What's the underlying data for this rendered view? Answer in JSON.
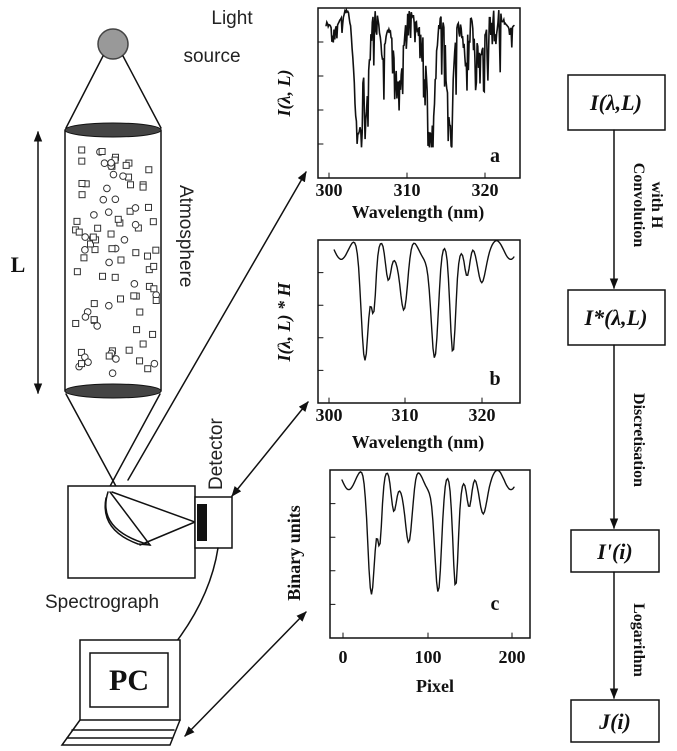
{
  "schematic": {
    "light_source": [
      "Light",
      "source"
    ],
    "atmosphere": "Atmosphere",
    "length": "L",
    "detector": "Detector",
    "spectrograph": "Spectrograph",
    "pc": "PC"
  },
  "panels": [
    {
      "label": "a",
      "y_label": "I(λ, L)",
      "x_label": "Wavelength (nm)",
      "x_ticks": [
        "300",
        "310",
        "320"
      ]
    },
    {
      "label": "b",
      "y_label": "I(λ, L) * H",
      "x_label": "Wavelength (nm)",
      "x_ticks": [
        "300",
        "310",
        "320"
      ]
    },
    {
      "label": "c",
      "y_label": "Binary units",
      "x_label": "Pixel",
      "x_ticks": [
        "0",
        "100",
        "200"
      ]
    }
  ],
  "flow": {
    "nodes": [
      "I(λ,L)",
      "I*(λ,L)",
      "I'(i)",
      "J(i)"
    ],
    "edges": [
      [
        "Convolution",
        "with H"
      ],
      [
        "Discretisation"
      ],
      [
        "Logarithm"
      ]
    ]
  }
}
